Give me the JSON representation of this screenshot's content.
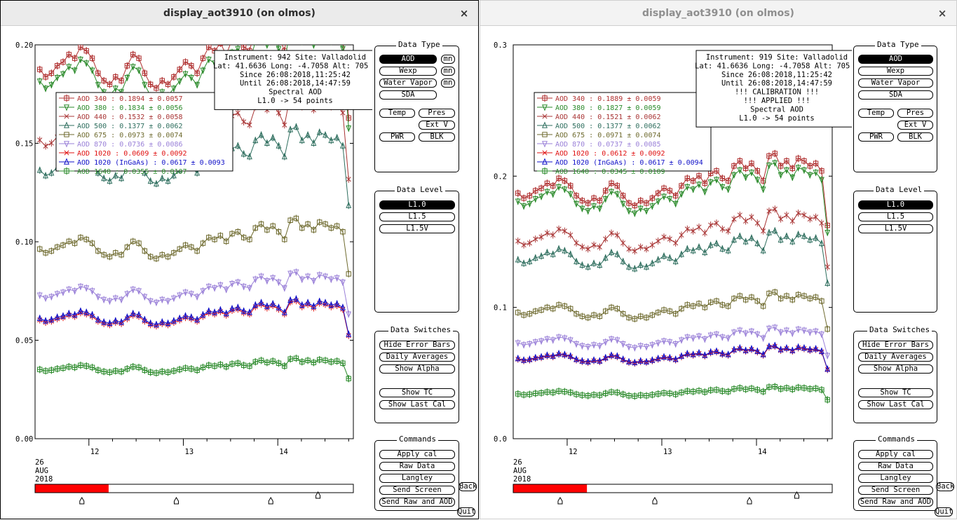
{
  "windows": [
    {
      "title": "display_aot3910 (on olmos)",
      "close_glyph": "×",
      "y_ticks": [
        "0.20",
        "0.15",
        "0.10",
        "0.05",
        "0.00"
      ],
      "x_ticks": [
        "12",
        "13",
        "14"
      ],
      "date": {
        "day": "26",
        "month": "AUG",
        "year": "2018"
      },
      "info_box": [
        "Instrument: 942 Site: Valladolid",
        "Lat: 41.6636 Long: -4.7058 Alt: 705 m",
        "Since 26:08:2018,11:25:42",
        "Until 26:08:2018,14:47:59",
        "Spectral AOD",
        "L1.0 -> 54 points"
      ],
      "legend": [
        {
          "label": "AOD 340   : 0.1894 ± 0.0057",
          "color": "#b03030",
          "marker": "square-plus"
        },
        {
          "label": "AOD 380   : 0.1834 ± 0.0056",
          "color": "#2a8a2a",
          "marker": "tri-down"
        },
        {
          "label": "AOD 440   : 0.1532 ± 0.0058",
          "color": "#a83434",
          "marker": "x"
        },
        {
          "label": "AOD 500   : 0.1377 ± 0.0062",
          "color": "#2e6e5e",
          "marker": "tri-up"
        },
        {
          "label": "AOD 675   : 0.0973 ± 0.0074",
          "color": "#6e6a2e",
          "marker": "square"
        },
        {
          "label": "AOD 870   : 0.0736 ± 0.0086",
          "color": "#9a80d8",
          "marker": "tri-down"
        },
        {
          "label": "AOD 1020   : 0.0609 ± 0.0092",
          "color": "#e01010",
          "marker": "x"
        },
        {
          "label": "AOD 1020 (InGaAs)   : 0.0617 ± 0.0093",
          "color": "#1010c8",
          "marker": "tri-up"
        },
        {
          "label": "AOD 1640   : 0.0355 ± 0.0107",
          "color": "#2a8a2a",
          "marker": "square-plus"
        }
      ],
      "progress": 0.23,
      "back_label": "Back",
      "quit_label": "Quit"
    },
    {
      "title": "display_aot3910 (on olmos)",
      "close_glyph": "×",
      "y_ticks": [
        "0.3",
        "0.2",
        "0.1",
        "0.0"
      ],
      "x_ticks": [
        "12",
        "13",
        "14"
      ],
      "date": {
        "day": "26",
        "month": "AUG",
        "year": "2018"
      },
      "info_box": [
        "Instrument: 919 Site: Valladolid",
        "Lat: 41.6636 Long: -4.7058 Alt: 705 m",
        "Since 26:08:2018,11:25:42",
        "Until 26:08:2018,14:47:59",
        "!!! CALIBRATION !!!",
        "!!!   APPLIED   !!!",
        "Spectral AOD",
        "L1.0 -> 54 points"
      ],
      "legend": [
        {
          "label": "AOD 340   : 0.1889 ± 0.0059",
          "color": "#b03030",
          "marker": "square-plus"
        },
        {
          "label": "AOD 380   : 0.1827 ± 0.0059",
          "color": "#2a8a2a",
          "marker": "tri-down"
        },
        {
          "label": "AOD 440   : 0.1521 ± 0.0062",
          "color": "#a83434",
          "marker": "x"
        },
        {
          "label": "AOD 500   : 0.1377 ± 0.0062",
          "color": "#2e6e5e",
          "marker": "tri-up"
        },
        {
          "label": "AOD 675   : 0.0971 ± 0.0074",
          "color": "#6e6a2e",
          "marker": "square"
        },
        {
          "label": "AOD 870   : 0.0737 ± 0.0085",
          "color": "#9a80d8",
          "marker": "tri-down"
        },
        {
          "label": "AOD 1020   : 0.0612 ± 0.0092",
          "color": "#e01010",
          "marker": "x"
        },
        {
          "label": "AOD 1020 (InGaAs)   : 0.0617 ± 0.0094",
          "color": "#1010c8",
          "marker": "tri-up"
        },
        {
          "label": "AOD 1640   : 0.0345 ± 0.0109",
          "color": "#2a8a2a",
          "marker": "square-plus"
        }
      ],
      "progress": 0.23,
      "back_label": "Back",
      "quit_label": "Quit"
    }
  ],
  "controls": {
    "data_type": {
      "title": "Data Type",
      "aod": "AOD",
      "wexp": "Wexp",
      "water_vapor": "Water Vapor",
      "sda": "SDA",
      "mn": "mn",
      "temp": "Temp",
      "pres": "Pres",
      "ext_v": "Ext V",
      "pwr": "PWR",
      "blk": "BLK"
    },
    "data_level": {
      "title": "Data Level",
      "l10": "L1.0",
      "l15": "L1.5",
      "l15v": "L1.5V"
    },
    "data_switches": {
      "title": "Data Switches",
      "hide_error_bars": "Hide Error Bars",
      "daily_averages": "Daily Averages",
      "show_alpha": "Show Alpha",
      "show_tc": "Show TC",
      "show_last_cal": "Show Last Cal"
    },
    "commands": {
      "title": "Commands",
      "apply_cal": "Apply cal",
      "raw_data": "Raw Data",
      "langley": "Langley",
      "send_screen": "Send Screen",
      "send_raw_aod": "Send Raw and AOD"
    }
  },
  "chart_data": [
    {
      "type": "line",
      "title": "",
      "xlabel": "",
      "ylabel": "",
      "x_ticks": [
        "12",
        "13",
        "14"
      ],
      "x_range_hours": [
        11.43,
        14.8
      ],
      "ylim": [
        0.0,
        0.2
      ],
      "grid": false,
      "legend_position": "top-left",
      "series": [
        {
          "name": "AOD 340",
          "mean": 0.1894
        },
        {
          "name": "AOD 380",
          "mean": 0.1834
        },
        {
          "name": "AOD 440",
          "mean": 0.1532
        },
        {
          "name": "AOD 500",
          "mean": 0.1377
        },
        {
          "name": "AOD 675",
          "mean": 0.0973
        },
        {
          "name": "AOD 870",
          "mean": 0.0736
        },
        {
          "name": "AOD 1020",
          "mean": 0.0609
        },
        {
          "name": "AOD 1020 (InGaAs)",
          "mean": 0.0617
        },
        {
          "name": "AOD 1640",
          "mean": 0.0355
        }
      ],
      "shape": [
        0.99,
        0.97,
        0.98,
        1.0,
        1.01,
        1.03,
        1.02,
        1.05,
        1.04,
        1.02,
        0.98,
        0.96,
        0.95,
        0.97,
        0.96,
        1.0,
        1.03,
        1.02,
        0.98,
        0.95,
        0.94,
        0.96,
        0.95,
        0.97,
        0.99,
        1.01,
        1.0,
        0.98,
        1.02,
        1.05,
        1.04,
        1.06,
        1.03,
        1.07,
        1.08,
        1.05,
        1.04,
        1.1,
        1.12,
        1.09,
        1.11,
        1.08,
        1.04,
        1.14,
        1.15,
        1.1,
        1.12,
        1.09,
        1.13,
        1.12,
        1.1,
        1.11,
        1.08,
        0.86
      ]
    },
    {
      "type": "line",
      "title": "",
      "xlabel": "",
      "ylabel": "",
      "x_ticks": [
        "12",
        "13",
        "14"
      ],
      "x_range_hours": [
        11.43,
        14.8
      ],
      "ylim": [
        0.0,
        0.3
      ],
      "grid": false,
      "legend_position": "top-left",
      "series": [
        {
          "name": "AOD 340",
          "mean": 0.1889
        },
        {
          "name": "AOD 380",
          "mean": 0.1827
        },
        {
          "name": "AOD 440",
          "mean": 0.1521
        },
        {
          "name": "AOD 500",
          "mean": 0.1377
        },
        {
          "name": "AOD 675",
          "mean": 0.0971
        },
        {
          "name": "AOD 870",
          "mean": 0.0737
        },
        {
          "name": "AOD 1020",
          "mean": 0.0612
        },
        {
          "name": "AOD 1020 (InGaAs)",
          "mean": 0.0617
        },
        {
          "name": "AOD 1640",
          "mean": 0.0345
        }
      ],
      "shape": [
        0.99,
        0.97,
        0.98,
        1.0,
        1.01,
        1.03,
        1.02,
        1.05,
        1.04,
        1.02,
        0.98,
        0.96,
        0.95,
        0.97,
        0.96,
        1.0,
        1.03,
        1.02,
        0.98,
        0.95,
        0.94,
        0.96,
        0.95,
        0.97,
        0.99,
        1.01,
        1.0,
        0.98,
        1.02,
        1.05,
        1.04,
        1.06,
        1.03,
        1.07,
        1.08,
        1.05,
        1.04,
        1.1,
        1.12,
        1.09,
        1.11,
        1.08,
        1.04,
        1.14,
        1.15,
        1.1,
        1.12,
        1.09,
        1.13,
        1.12,
        1.1,
        1.11,
        1.08,
        0.86
      ]
    }
  ]
}
